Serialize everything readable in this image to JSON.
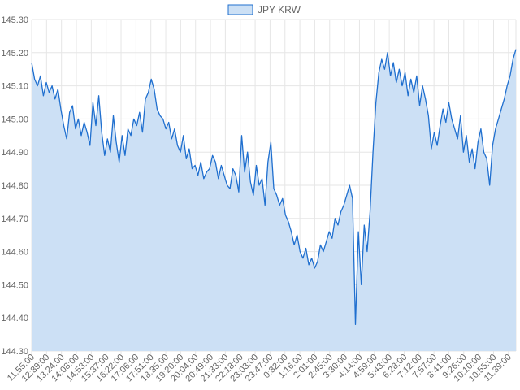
{
  "chart_data": {
    "type": "area",
    "title": "",
    "xlabel": "",
    "ylabel": "",
    "legend_position": "top-center",
    "grid": true,
    "ylim": [
      144.3,
      145.3
    ],
    "y_ticks": [
      "145.30",
      "145.20",
      "145.10",
      "145.00",
      "144.90",
      "144.80",
      "144.70",
      "144.60",
      "144.50",
      "144.40",
      "144.30"
    ],
    "x_ticks": [
      "11:55:00",
      "12:39:00",
      "13:24:00",
      "14:08:00",
      "14:53:00",
      "15:37:00",
      "16:22:00",
      "17:06:00",
      "17:51:00",
      "18:35:00",
      "19:20:00",
      "20:04:00",
      "20:49:00",
      "21:33:00",
      "22:18:00",
      "23:03:00",
      "23:47:00",
      "0:32:00",
      "1:16:00",
      "2:01:00",
      "2:45:00",
      "3:30:00",
      "4:14:00",
      "4:59:00",
      "5:43:00",
      "6:28:00",
      "7:12:00",
      "7:57:00",
      "8:41:00",
      "9:26:00",
      "10:10:00",
      "10:55:00",
      "11:39:00"
    ],
    "series": [
      {
        "name": "JPY KRW",
        "line_color": "#1f6fcf",
        "fill_color": "#cce0f5",
        "values": [
          145.17,
          145.12,
          145.1,
          145.13,
          145.07,
          145.11,
          145.08,
          145.1,
          145.06,
          145.09,
          145.03,
          144.98,
          144.94,
          145.02,
          145.04,
          144.97,
          145.0,
          144.95,
          144.99,
          144.96,
          144.92,
          145.05,
          144.98,
          145.07,
          144.96,
          144.89,
          144.94,
          144.9,
          145.01,
          144.93,
          144.87,
          144.95,
          144.89,
          144.97,
          144.95,
          145.0,
          144.98,
          145.02,
          144.96,
          145.06,
          145.08,
          145.12,
          145.09,
          145.03,
          145.01,
          145.0,
          144.97,
          144.99,
          144.94,
          144.97,
          144.92,
          144.9,
          144.95,
          144.88,
          144.91,
          144.85,
          144.86,
          144.83,
          144.87,
          144.82,
          144.84,
          144.85,
          144.89,
          144.87,
          144.82,
          144.86,
          144.83,
          144.8,
          144.79,
          144.85,
          144.83,
          144.78,
          144.95,
          144.84,
          144.9,
          144.81,
          144.77,
          144.86,
          144.8,
          144.82,
          144.74,
          144.87,
          144.93,
          144.79,
          144.77,
          144.74,
          144.76,
          144.71,
          144.69,
          144.66,
          144.62,
          144.65,
          144.6,
          144.58,
          144.61,
          144.56,
          144.58,
          144.55,
          144.57,
          144.62,
          144.6,
          144.63,
          144.66,
          144.64,
          144.7,
          144.68,
          144.72,
          144.74,
          144.77,
          144.8,
          144.76,
          144.38,
          144.66,
          144.5,
          144.68,
          144.6,
          144.72,
          144.9,
          145.05,
          145.14,
          145.18,
          145.15,
          145.2,
          145.13,
          145.17,
          145.11,
          145.15,
          145.1,
          145.14,
          145.07,
          145.12,
          145.08,
          145.13,
          145.04,
          145.1,
          145.06,
          145.01,
          144.91,
          144.96,
          144.92,
          144.98,
          145.03,
          144.99,
          145.05,
          145.0,
          144.97,
          144.94,
          145.01,
          144.9,
          144.95,
          144.87,
          144.91,
          144.85,
          144.93,
          144.97,
          144.9,
          144.88,
          144.8,
          144.92,
          144.97,
          145.0,
          145.03,
          145.06,
          145.1,
          145.13,
          145.18,
          145.21
        ]
      }
    ]
  }
}
